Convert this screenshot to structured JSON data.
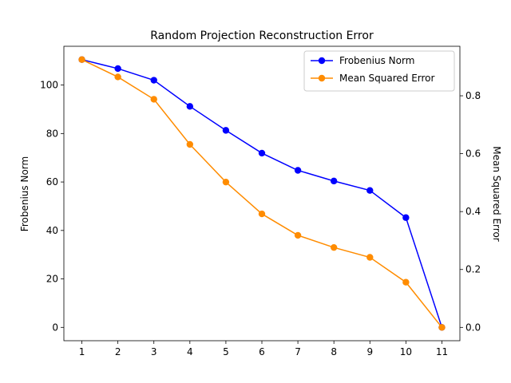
{
  "chart_data": {
    "type": "line",
    "title": "Random Projection Reconstruction Error",
    "xlabel": "",
    "x": [
      1,
      2,
      3,
      4,
      5,
      6,
      7,
      8,
      9,
      10,
      11
    ],
    "xticks": [
      "1",
      "2",
      "3",
      "4",
      "5",
      "6",
      "7",
      "8",
      "9",
      "10",
      "11"
    ],
    "xlim": [
      0.5,
      11.5
    ],
    "left_axis": {
      "label": "Frobenius Norm",
      "ylim": [
        -5.5,
        116
      ],
      "ticks": [
        0,
        20,
        40,
        60,
        80,
        100
      ],
      "tick_labels": [
        "0",
        "20",
        "40",
        "60",
        "80",
        "100"
      ]
    },
    "right_axis": {
      "label": "Mean Squared Error",
      "ylim": [
        -0.046,
        0.971
      ],
      "ticks": [
        0.0,
        0.2,
        0.4,
        0.6,
        0.8
      ],
      "tick_labels": [
        "0.0",
        "0.2",
        "0.4",
        "0.6",
        "0.8"
      ]
    },
    "series": [
      {
        "name": "Frobenius Norm",
        "axis": "left",
        "color": "#0000ff",
        "values": [
          110.5,
          106.8,
          102.0,
          91.2,
          81.3,
          71.9,
          64.8,
          60.4,
          56.5,
          45.3,
          0.0
        ]
      },
      {
        "name": "Mean Squared Error",
        "axis": "right",
        "color": "#ff8c00",
        "values": [
          0.925,
          0.865,
          0.788,
          0.632,
          0.502,
          0.392,
          0.318,
          0.276,
          0.242,
          0.156,
          0.0
        ]
      }
    ],
    "legend": {
      "position": "top-right"
    },
    "grid": false
  }
}
